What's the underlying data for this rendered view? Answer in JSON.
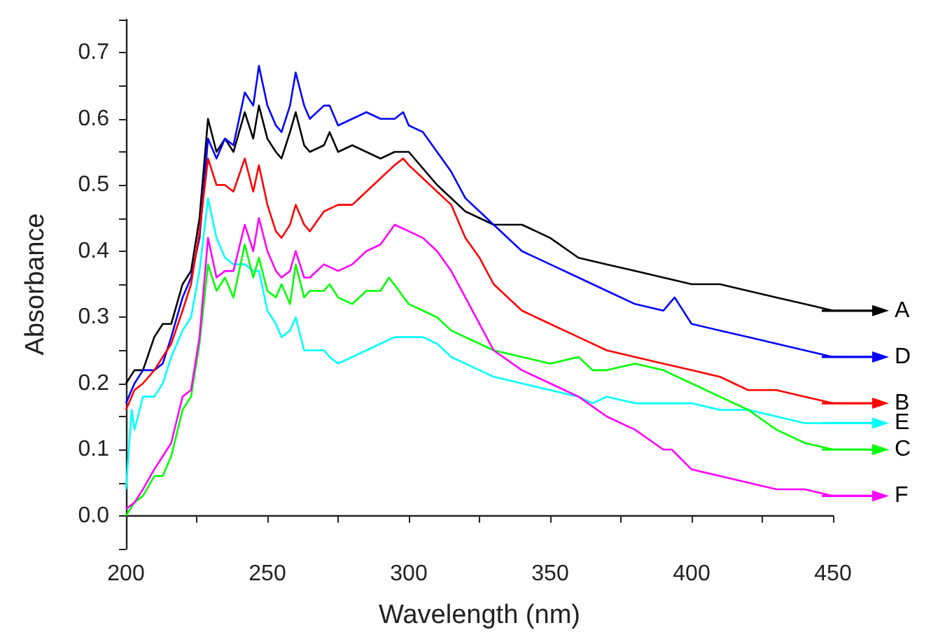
{
  "chart_data": {
    "type": "line",
    "xlabel": "Wavelength (nm)",
    "ylabel": "Absorbance",
    "xlim": [
      200,
      450
    ],
    "ylim": [
      -0.05,
      0.75
    ],
    "xticks": [
      200,
      {
        "value": 225,
        "label": null
      },
      250,
      {
        "value": 275,
        "label": null
      },
      300,
      {
        "value": 325,
        "label": null
      },
      350,
      {
        "value": 375,
        "label": null
      },
      400,
      {
        "value": 425,
        "label": null
      },
      450
    ],
    "yticks": [
      {
        "value": -0.05,
        "label": null
      },
      {
        "value": 0,
        "label": "0.0"
      },
      {
        "value": 0.05,
        "label": null
      },
      0.1,
      {
        "value": 0.15,
        "label": null
      },
      0.2,
      {
        "value": 0.25,
        "label": null
      },
      0.3,
      {
        "value": 0.35,
        "label": null
      },
      0.4,
      {
        "value": 0.45,
        "label": null
      },
      0.5,
      {
        "value": 0.55,
        "label": null
      },
      0.6,
      {
        "value": 0.65,
        "label": null
      },
      0.7,
      {
        "value": 0.75,
        "label": null
      }
    ],
    "grid": false,
    "legend": "right",
    "marker": "none",
    "line_style": "solid",
    "series": [
      {
        "name": "A",
        "color": "#000000",
        "x": [
          200,
          203,
          206,
          210,
          213,
          216,
          220,
          223,
          226,
          229,
          232,
          235,
          238,
          242,
          245,
          247,
          250,
          253,
          255,
          258,
          260,
          263,
          265,
          270,
          272,
          275,
          280,
          285,
          290,
          295,
          300,
          310,
          320,
          330,
          340,
          350,
          360,
          370,
          380,
          390,
          400,
          410,
          420,
          430,
          440,
          450
        ],
        "values": [
          0.2,
          0.22,
          0.22,
          0.27,
          0.29,
          0.29,
          0.35,
          0.37,
          0.45,
          0.6,
          0.55,
          0.57,
          0.55,
          0.61,
          0.57,
          0.62,
          0.57,
          0.55,
          0.54,
          0.58,
          0.61,
          0.56,
          0.55,
          0.56,
          0.58,
          0.55,
          0.56,
          0.55,
          0.54,
          0.55,
          0.55,
          0.5,
          0.46,
          0.44,
          0.44,
          0.42,
          0.39,
          0.38,
          0.37,
          0.36,
          0.35,
          0.35,
          0.34,
          0.33,
          0.32,
          0.31
        ]
      },
      {
        "name": "D",
        "color": "#0000ff",
        "x": [
          200,
          203,
          206,
          210,
          213,
          216,
          220,
          223,
          226,
          229,
          232,
          235,
          238,
          242,
          245,
          247,
          250,
          253,
          255,
          258,
          260,
          263,
          265,
          270,
          272,
          275,
          280,
          285,
          290,
          295,
          298,
          300,
          305,
          310,
          315,
          320,
          325,
          330,
          340,
          350,
          360,
          370,
          380,
          390,
          394,
          400,
          410,
          420,
          430,
          440,
          450
        ],
        "values": [
          0.17,
          0.2,
          0.22,
          0.22,
          0.23,
          0.27,
          0.33,
          0.36,
          0.42,
          0.57,
          0.54,
          0.57,
          0.56,
          0.64,
          0.62,
          0.68,
          0.62,
          0.59,
          0.58,
          0.62,
          0.67,
          0.62,
          0.6,
          0.62,
          0.62,
          0.59,
          0.6,
          0.61,
          0.6,
          0.6,
          0.61,
          0.59,
          0.58,
          0.55,
          0.52,
          0.48,
          0.46,
          0.44,
          0.4,
          0.38,
          0.36,
          0.34,
          0.32,
          0.31,
          0.33,
          0.29,
          0.28,
          0.27,
          0.26,
          0.25,
          0.24
        ]
      },
      {
        "name": "B",
        "color": "#ff0000",
        "x": [
          200,
          203,
          206,
          210,
          213,
          216,
          220,
          223,
          226,
          229,
          232,
          235,
          238,
          242,
          245,
          247,
          250,
          253,
          255,
          258,
          260,
          263,
          265,
          270,
          275,
          280,
          285,
          290,
          295,
          298,
          300,
          305,
          310,
          315,
          320,
          325,
          330,
          340,
          350,
          360,
          370,
          380,
          390,
          400,
          410,
          420,
          430,
          440,
          450
        ],
        "values": [
          0.16,
          0.19,
          0.2,
          0.22,
          0.24,
          0.26,
          0.31,
          0.35,
          0.43,
          0.54,
          0.5,
          0.5,
          0.49,
          0.54,
          0.49,
          0.53,
          0.47,
          0.43,
          0.42,
          0.44,
          0.47,
          0.44,
          0.43,
          0.46,
          0.47,
          0.47,
          0.49,
          0.51,
          0.53,
          0.54,
          0.53,
          0.51,
          0.49,
          0.47,
          0.42,
          0.39,
          0.35,
          0.31,
          0.29,
          0.27,
          0.25,
          0.24,
          0.23,
          0.22,
          0.21,
          0.19,
          0.19,
          0.18,
          0.17
        ]
      },
      {
        "name": "E",
        "color": "#00ffff",
        "x": [
          200,
          202,
          203,
          206,
          210,
          213,
          216,
          220,
          223,
          226,
          229,
          232,
          235,
          238,
          242,
          245,
          247,
          250,
          253,
          255,
          258,
          260,
          263,
          265,
          270,
          272,
          275,
          280,
          285,
          290,
          295,
          300,
          305,
          310,
          315,
          320,
          325,
          330,
          340,
          350,
          360,
          365,
          370,
          380,
          390,
          400,
          410,
          420,
          430,
          440,
          450
        ],
        "values": [
          0.04,
          0.16,
          0.13,
          0.18,
          0.18,
          0.2,
          0.24,
          0.28,
          0.3,
          0.37,
          0.48,
          0.42,
          0.39,
          0.38,
          0.38,
          0.37,
          0.37,
          0.31,
          0.29,
          0.27,
          0.28,
          0.3,
          0.25,
          0.25,
          0.25,
          0.24,
          0.23,
          0.24,
          0.25,
          0.26,
          0.27,
          0.27,
          0.27,
          0.26,
          0.24,
          0.23,
          0.22,
          0.21,
          0.2,
          0.19,
          0.18,
          0.17,
          0.18,
          0.17,
          0.17,
          0.17,
          0.16,
          0.16,
          0.15,
          0.14,
          0.14
        ]
      },
      {
        "name": "C",
        "color": "#00ff00",
        "x": [
          200,
          203,
          206,
          210,
          213,
          216,
          220,
          223,
          226,
          229,
          232,
          235,
          238,
          242,
          245,
          247,
          250,
          253,
          255,
          258,
          260,
          263,
          265,
          270,
          272,
          275,
          280,
          285,
          290,
          293,
          300,
          305,
          310,
          315,
          320,
          325,
          330,
          340,
          350,
          360,
          365,
          370,
          380,
          390,
          400,
          410,
          420,
          430,
          440,
          450
        ],
        "values": [
          0.0,
          0.02,
          0.03,
          0.06,
          0.06,
          0.09,
          0.16,
          0.18,
          0.26,
          0.38,
          0.34,
          0.36,
          0.33,
          0.41,
          0.36,
          0.39,
          0.34,
          0.33,
          0.35,
          0.32,
          0.38,
          0.33,
          0.34,
          0.34,
          0.35,
          0.33,
          0.32,
          0.34,
          0.34,
          0.36,
          0.32,
          0.31,
          0.3,
          0.28,
          0.27,
          0.26,
          0.25,
          0.24,
          0.23,
          0.24,
          0.22,
          0.22,
          0.23,
          0.22,
          0.2,
          0.18,
          0.16,
          0.13,
          0.11,
          0.1
        ]
      },
      {
        "name": "F",
        "color": "#ff00ff",
        "x": [
          200,
          203,
          206,
          210,
          213,
          216,
          220,
          223,
          226,
          229,
          232,
          235,
          238,
          242,
          245,
          247,
          250,
          253,
          255,
          258,
          260,
          263,
          265,
          270,
          275,
          280,
          285,
          290,
          295,
          300,
          305,
          310,
          315,
          320,
          325,
          330,
          340,
          350,
          360,
          370,
          380,
          390,
          393,
          400,
          410,
          420,
          430,
          440,
          450
        ],
        "values": [
          0.01,
          0.02,
          0.04,
          0.07,
          0.09,
          0.11,
          0.18,
          0.19,
          0.27,
          0.42,
          0.36,
          0.37,
          0.37,
          0.44,
          0.4,
          0.45,
          0.4,
          0.37,
          0.36,
          0.37,
          0.4,
          0.36,
          0.36,
          0.38,
          0.37,
          0.38,
          0.4,
          0.41,
          0.44,
          0.43,
          0.42,
          0.4,
          0.37,
          0.33,
          0.29,
          0.25,
          0.22,
          0.2,
          0.18,
          0.15,
          0.13,
          0.1,
          0.1,
          0.07,
          0.06,
          0.05,
          0.04,
          0.04,
          0.03
        ]
      }
    ]
  }
}
